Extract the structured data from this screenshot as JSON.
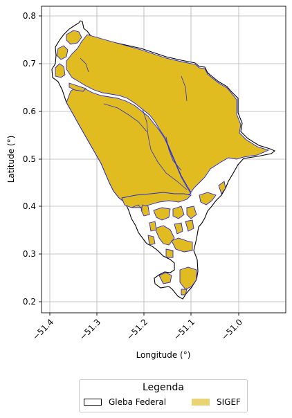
{
  "map": {
    "xlabel": "Longitude (°)",
    "ylabel": "Latitude (°)",
    "x_ticks": [
      "−51.4",
      "−51.3",
      "−51.2",
      "−51.1",
      "−51.0"
    ],
    "y_ticks": [
      "0.2",
      "0.3",
      "0.4",
      "0.5",
      "0.6",
      "0.7",
      "0.8"
    ],
    "x_range": [
      -51.42,
      -50.96
    ],
    "y_range": [
      0.18,
      0.82
    ],
    "grid": true
  },
  "legend": {
    "title": "Legenda",
    "items": [
      {
        "label": "Gleba Federal",
        "style": "outline"
      },
      {
        "label": "SIGEF",
        "style": "fill"
      }
    ]
  },
  "colors": {
    "gleba_fill": "#ffffff",
    "gleba_edge": "#000000",
    "sigef_fill": "#e0bc20",
    "sigef_edge": "#2a2ad0",
    "grid": "#b0b0b0"
  }
}
